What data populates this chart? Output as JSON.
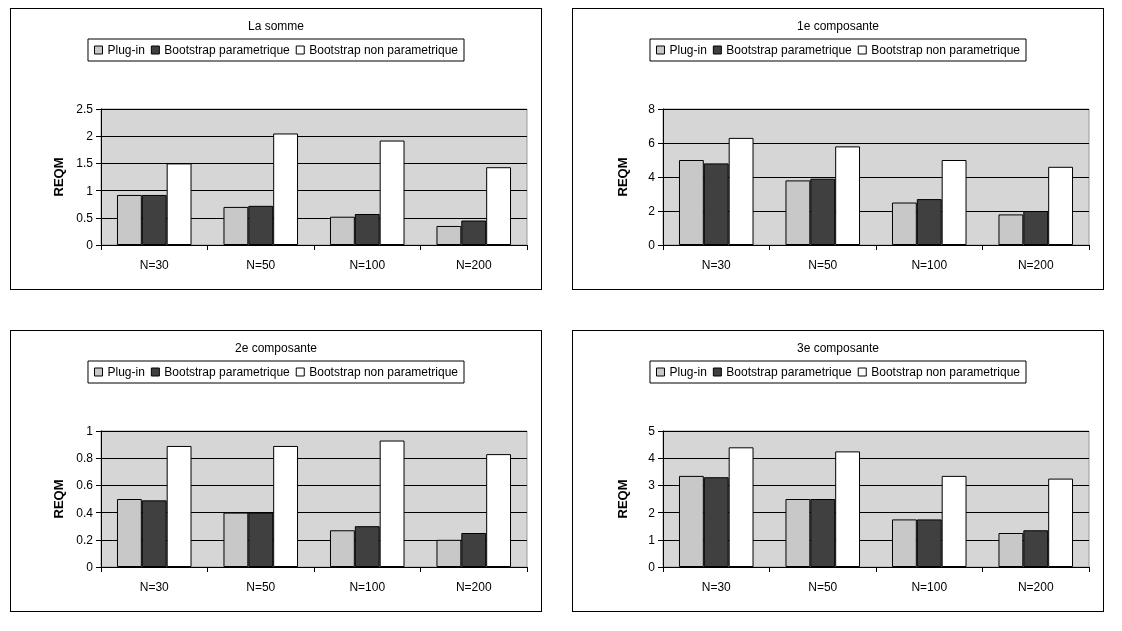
{
  "chart_data": [
    {
      "type": "bar",
      "title": "La somme",
      "ylabel": "REQM",
      "categories": [
        "N=30",
        "N=50",
        "N=100",
        "N=200"
      ],
      "ylim": [
        0,
        2.5
      ],
      "yticks": [
        0,
        0.5,
        1,
        1.5,
        2,
        2.5
      ],
      "grid": "y",
      "legend": "top",
      "series": [
        {
          "name": "Plug-in",
          "color": "#c8c8c8",
          "values": [
            0.92,
            0.7,
            0.52,
            0.35
          ]
        },
        {
          "name": "Bootstrap parametrique",
          "color": "#404040",
          "values": [
            0.92,
            0.72,
            0.57,
            0.45
          ]
        },
        {
          "name": "Bootstrap non parametrique",
          "color": "#ffffff",
          "values": [
            1.5,
            2.05,
            1.92,
            1.43
          ]
        }
      ]
    },
    {
      "type": "bar",
      "title": "1e composante",
      "ylabel": "REQM",
      "categories": [
        "N=30",
        "N=50",
        "N=100",
        "N=200"
      ],
      "ylim": [
        0,
        8
      ],
      "yticks": [
        0,
        2,
        4,
        6,
        8
      ],
      "grid": "y",
      "legend": "top",
      "series": [
        {
          "name": "Plug-in",
          "color": "#c8c8c8",
          "values": [
            5.0,
            3.8,
            2.5,
            1.8
          ]
        },
        {
          "name": "Bootstrap parametrique",
          "color": "#404040",
          "values": [
            4.8,
            3.9,
            2.7,
            2.0
          ]
        },
        {
          "name": "Bootstrap non parametrique",
          "color": "#ffffff",
          "values": [
            6.3,
            5.8,
            5.0,
            4.6
          ]
        }
      ]
    },
    {
      "type": "bar",
      "title": "2e composante",
      "ylabel": "REQM",
      "categories": [
        "N=30",
        "N=50",
        "N=100",
        "N=200"
      ],
      "ylim": [
        0,
        1
      ],
      "yticks": [
        0,
        0.2,
        0.4,
        0.6,
        0.8,
        1
      ],
      "grid": "y",
      "legend": "top",
      "series": [
        {
          "name": "Plug-in",
          "color": "#c8c8c8",
          "values": [
            0.5,
            0.4,
            0.27,
            0.2
          ]
        },
        {
          "name": "Bootstrap parametrique",
          "color": "#404040",
          "values": [
            0.49,
            0.4,
            0.3,
            0.25
          ]
        },
        {
          "name": "Bootstrap non parametrique",
          "color": "#ffffff",
          "values": [
            0.89,
            0.89,
            0.93,
            0.83
          ]
        }
      ]
    },
    {
      "type": "bar",
      "title": "3e composante",
      "ylabel": "REQM",
      "categories": [
        "N=30",
        "N=50",
        "N=100",
        "N=200"
      ],
      "ylim": [
        0,
        5
      ],
      "yticks": [
        0,
        1,
        2,
        3,
        4,
        5
      ],
      "grid": "y",
      "legend": "top",
      "series": [
        {
          "name": "Plug-in",
          "color": "#c8c8c8",
          "values": [
            3.35,
            2.5,
            1.75,
            1.25
          ]
        },
        {
          "name": "Bootstrap parametrique",
          "color": "#404040",
          "values": [
            3.3,
            2.5,
            1.75,
            1.35
          ]
        },
        {
          "name": "Bootstrap non parametrique",
          "color": "#ffffff",
          "values": [
            4.4,
            4.25,
            3.35,
            3.25
          ]
        }
      ]
    }
  ]
}
